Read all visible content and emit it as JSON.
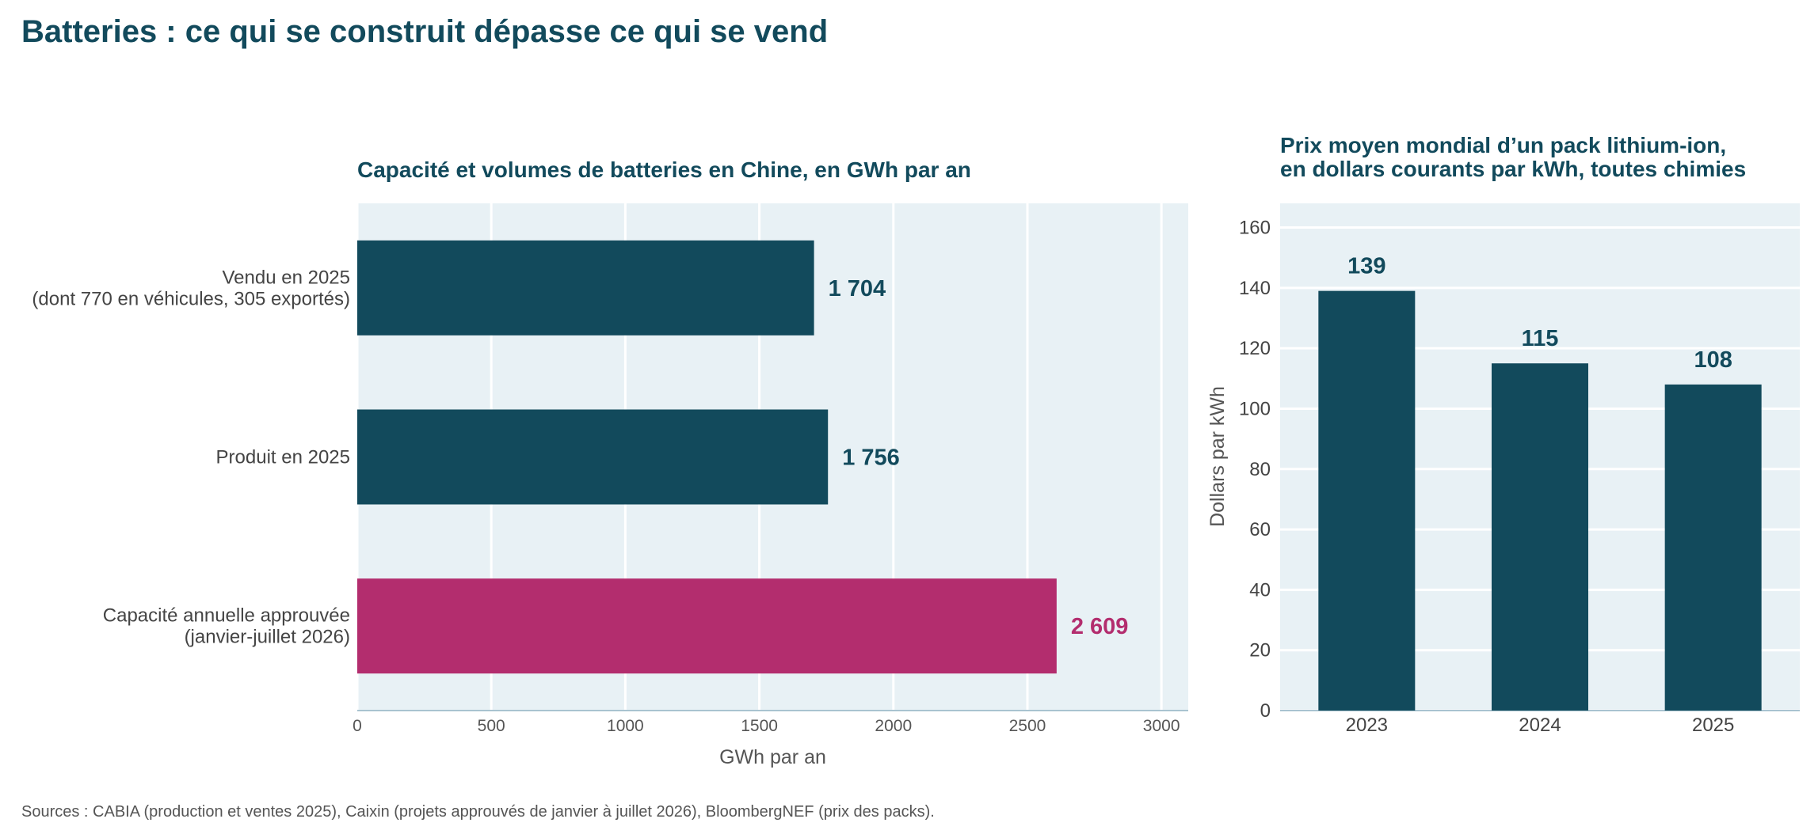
{
  "page": {
    "title": "Batteries : ce qui se construit dépasse ce qui se vend",
    "source": "Sources : CABIA (production et ventes 2025), Caixin (projets approuvés de janvier à juillet 2026), BloombergNEF (prix des packs)."
  },
  "colors": {
    "primary": "#124a5c",
    "accent": "#b32d6e",
    "plot_bg": "#e8f1f5",
    "grid": "#ffffff"
  },
  "chart_data": [
    {
      "type": "bar",
      "orientation": "horizontal",
      "title": "Capacité et volumes de batteries en Chine, en GWh par an",
      "xlabel": "GWh par an",
      "ylabel": "",
      "xlim": [
        0,
        3100
      ],
      "xticks": [
        0,
        500,
        1000,
        1500,
        2000,
        2500,
        3000
      ],
      "categories": [
        [
          "Vendu en 2025",
          "(dont 770 en véhicules, 305 exportés)"
        ],
        [
          "Produit en 2025"
        ],
        [
          "Capacité annuelle approuvée",
          "(janvier-juillet 2026)"
        ]
      ],
      "values": [
        1704,
        1756,
        2609
      ],
      "value_labels": [
        "1 704",
        "1 756",
        "2 609"
      ],
      "highlight_index": 2,
      "grid": true
    },
    {
      "type": "bar",
      "orientation": "vertical",
      "title": [
        "Prix moyen mondial d’un pack lithium-ion,",
        "en dollars courants par kWh, toutes chimies"
      ],
      "xlabel": "",
      "ylabel": "Dollars par kWh",
      "ylim": [
        0,
        168
      ],
      "yticks": [
        0,
        20,
        40,
        60,
        80,
        100,
        120,
        140,
        160
      ],
      "categories": [
        "2023",
        "2024",
        "2025"
      ],
      "values": [
        139,
        115,
        108
      ],
      "value_labels": [
        "139",
        "115",
        "108"
      ],
      "grid": true
    }
  ]
}
